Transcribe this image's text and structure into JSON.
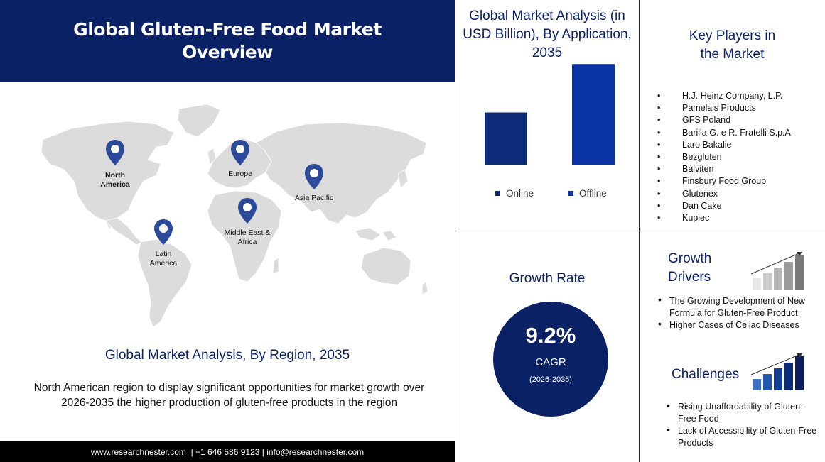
{
  "header": {
    "title": "Global Gluten-Free Food Market Overview"
  },
  "map": {
    "pins": [
      {
        "label": "North America",
        "bold": true
      },
      {
        "label": "Europe",
        "bold": false
      },
      {
        "label": "Asia Pacific",
        "bold": false
      },
      {
        "label": "Middle East & Africa",
        "bold": false
      },
      {
        "label": "Latin America",
        "bold": false
      }
    ],
    "colors": {
      "land": "#dcdcdc",
      "pin": "#2b4a9a"
    }
  },
  "region": {
    "title": "Global Market Analysis, By Region, 2035",
    "description": "North American region to display significant opportunities  for market growth over 2026-2035 the higher production  of gluten-free products in the region"
  },
  "footer": {
    "text": "www.researchnester.com  | +1 646 586 9123 | info@researchnester.com"
  },
  "chart_data": {
    "type": "bar",
    "title": "Global Market Analysis (in USD Billion), By Application, 2035",
    "categories": [
      "Online",
      "Offline"
    ],
    "values": [
      70,
      135
    ],
    "ylim": [
      0,
      140
    ],
    "grid": false,
    "legend": "bottom",
    "colors": [
      "#0b2a78",
      "#0a34a3"
    ]
  },
  "players": {
    "title": "Key Players in the Market",
    "items": [
      "H.J. Heinz Company,  L.P.",
      "Pamela's Products",
      "GFS Poland",
      "Barilla G. e R. Fratelli S.p.A",
      "Laro Bakalie",
      "Bezgluten",
      "Balviten",
      "Finsbury Food Group",
      "Glutenex",
      "Dan Cake",
      "Kupiec"
    ]
  },
  "growth": {
    "title": "Growth Rate",
    "value": "9.2%",
    "label": "CAGR",
    "period": "(2026-2035)"
  },
  "drivers": {
    "title": "Growth Drivers",
    "items": [
      "The Growing Development of New Formula for Gluten-Free Product",
      "Higher Cases of Celiac Diseases"
    ]
  },
  "challenges": {
    "title": "Challenges",
    "items": [
      "Rising Unaffordability of Gluten-Free  Food",
      "Lack of Accessibility of Gluten-Free  Products"
    ]
  },
  "icons": {
    "drivers": "bar-growth-gray-icon",
    "challenges": "bar-growth-blue-icon",
    "pin": "map-pin-icon"
  }
}
